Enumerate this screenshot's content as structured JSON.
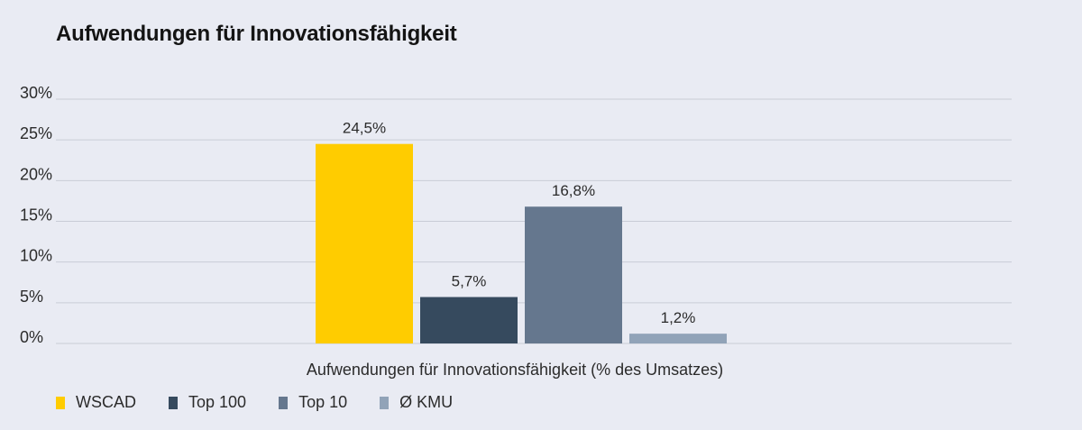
{
  "title": "Aufwendungen für Innovationsfähigkeit",
  "chart_data": {
    "type": "bar",
    "title": "Aufwendungen für Innovationsfähigkeit",
    "xlabel": "Aufwendungen für Innovationsfähigkeit (% des Umsatzes)",
    "ylabel": "",
    "ylim": [
      0,
      30
    ],
    "y_ticks": [
      {
        "value": 0,
        "label": "0%"
      },
      {
        "value": 5,
        "label": "5%"
      },
      {
        "value": 10,
        "label": "10%"
      },
      {
        "value": 15,
        "label": "15%"
      },
      {
        "value": 20,
        "label": "20%"
      },
      {
        "value": 25,
        "label": "25%"
      },
      {
        "value": 30,
        "label": "30%"
      }
    ],
    "grid": true,
    "legend_position": "bottom-left",
    "series": [
      {
        "name": "WSCAD",
        "value": 24.5,
        "label": "24,5%",
        "color": "#ffcc00"
      },
      {
        "name": "Top 100",
        "value": 5.7,
        "label": "5,7%",
        "color": "#364a5e"
      },
      {
        "name": "Top 10",
        "value": 16.8,
        "label": "16,8%",
        "color": "#65778e"
      },
      {
        "name": "Ø KMU",
        "value": 1.2,
        "label": "1,2%",
        "color": "#91a3b8"
      }
    ]
  }
}
